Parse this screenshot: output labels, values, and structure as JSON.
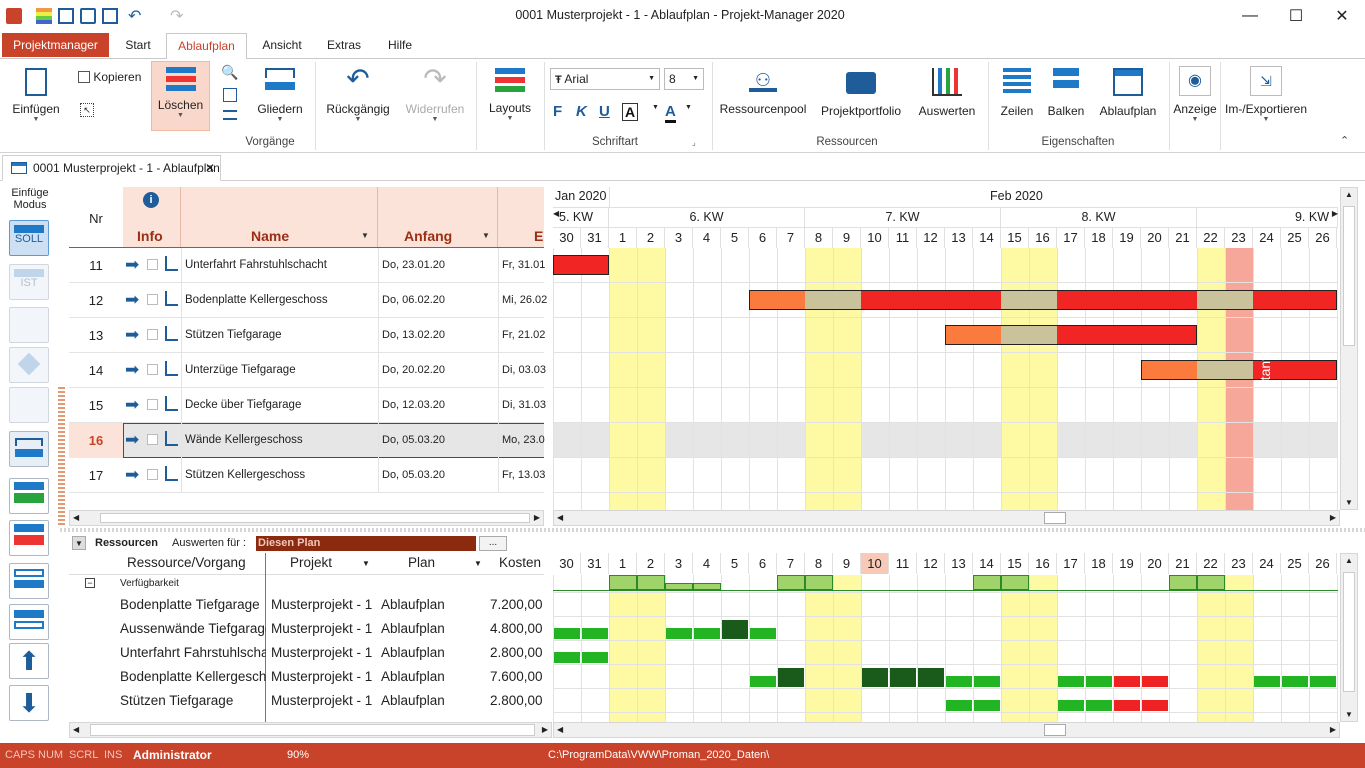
{
  "window": {
    "title": "0001 Musterprojekt - 1 - Ablaufplan - Projekt-Manager 2020"
  },
  "menu": {
    "app_button": "Projektmanager",
    "tabs": [
      "Start",
      "Ablaufplan",
      "Ansicht",
      "Extras",
      "Hilfe"
    ]
  },
  "ribbon": {
    "einfuegen": "Einfügen",
    "kopieren": "Kopieren",
    "loeschen": "Löschen",
    "gliedern": "Gliedern",
    "rueckgaengig": "Rückgängig",
    "widerrufen": "Widerrufen",
    "layouts": "Layouts",
    "font_name": "Arial",
    "font_size": "8",
    "fmt": [
      "F",
      "K",
      "U",
      "A",
      "A"
    ],
    "ressourcenpool": "Ressourcenpool",
    "projektportfolio": "Projektportfolio",
    "auswerten": "Auswerten",
    "zeilen": "Zeilen",
    "balken": "Balken",
    "ablaufplan": "Ablaufplan",
    "anzeige": "Anzeige",
    "imexport": "Im-/Exportieren",
    "groups": {
      "vorgaenge": "Vorgänge",
      "schriftart": "Schriftart",
      "ressourcen": "Ressourcen",
      "eigenschaften": "Eigenschaften"
    }
  },
  "doc_tab": {
    "label": "0001 Musterprojekt - 1 - Ablaufplan"
  },
  "left_tools": {
    "mode_label_1": "Einfüge",
    "mode_label_2": "Modus",
    "soll": "SOLL",
    "ist": "IST"
  },
  "task_table": {
    "headers": {
      "nr": "Nr",
      "info": "Info",
      "name": "Name",
      "anfang": "Anfang",
      "ende": "E"
    },
    "rows": [
      {
        "nr": "11",
        "name": "Unterfahrt Fahrstuhlschacht",
        "anfang": "Do, 23.01.20",
        "ende": "Fr, 31.01"
      },
      {
        "nr": "12",
        "name": "Bodenplatte Kellergeschoss",
        "anfang": "Do, 06.02.20",
        "ende": "Mi, 26.02"
      },
      {
        "nr": "13",
        "name": "Stützen Tiefgarage",
        "anfang": "Do, 13.02.20",
        "ende": "Fr, 21.02"
      },
      {
        "nr": "14",
        "name": "Unterzüge Tiefgarage",
        "anfang": "Do, 20.02.20",
        "ende": "Di, 03.03"
      },
      {
        "nr": "15",
        "name": "Decke über Tiefgarage",
        "anfang": "Do, 12.03.20",
        "ende": "Di, 31.03"
      },
      {
        "nr": "16",
        "name": "Wände Kellergeschoss",
        "anfang": "Do, 05.03.20",
        "ende": "Mo, 23.0"
      },
      {
        "nr": "17",
        "name": "Stützen Kellergeschoss",
        "anfang": "Do, 05.03.20",
        "ende": "Fr, 13.03"
      }
    ]
  },
  "gantt": {
    "months": [
      {
        "label": "Jan 2020"
      },
      {
        "label": "Feb 2020"
      }
    ],
    "weeks": [
      "5. KW",
      "6. KW",
      "7. KW",
      "8. KW",
      "9. KW"
    ],
    "days": [
      "30",
      "31",
      "1",
      "2",
      "3",
      "4",
      "5",
      "6",
      "7",
      "8",
      "9",
      "10",
      "11",
      "12",
      "13",
      "14",
      "15",
      "16",
      "17",
      "18",
      "19",
      "20",
      "21",
      "22",
      "23",
      "24",
      "25",
      "26"
    ],
    "marker_label": "Projektanfang",
    "colors": {
      "weekend": "#fdfaa3",
      "bar_red": "#f22525",
      "bar_orange": "#fb7a3d",
      "bar_gray": "#c9c29a",
      "marker": "#f6a79a",
      "selected_row": "#e6e6e6"
    }
  },
  "resources": {
    "title": "Ressourcen",
    "auswerten_label": "Auswerten für :",
    "auswerten_value": "Diesen Plan",
    "more": "...",
    "headers": {
      "ressource": "Ressource/Vorgang",
      "projekt": "Projekt",
      "plan": "Plan",
      "kosten": "Kosten"
    },
    "group_label": "Verfügbarkeit",
    "rows": [
      {
        "name": "Bodenplatte Tiefgarage",
        "projekt": "Musterprojekt - 1",
        "plan": "Ablaufplan",
        "kosten": "7.200,00"
      },
      {
        "name": "Aussenwände Tiefgarage",
        "projekt": "Musterprojekt - 1",
        "plan": "Ablaufplan",
        "kosten": "4.800,00"
      },
      {
        "name": "Unterfahrt Fahrstuhlschacht",
        "projekt": "Musterprojekt - 1",
        "plan": "Ablaufplan",
        "kosten": "2.800,00"
      },
      {
        "name": "Bodenplatte Kellergeschoss",
        "projekt": "Musterprojekt - 1",
        "plan": "Ablaufplan",
        "kosten": "7.600,00"
      },
      {
        "name": "Stützen Tiefgarage",
        "projekt": "Musterprojekt - 1",
        "plan": "Ablaufplan",
        "kosten": "2.800,00"
      }
    ],
    "highlight_day": "10"
  },
  "status": {
    "caps": "CAPS",
    "num": "NUM",
    "scrl": "SCRL",
    "ins": "INS",
    "user": "Administrator",
    "zoom": "90%",
    "path": "C:\\ProgramData\\VWW\\Proman_2020_Daten\\"
  }
}
